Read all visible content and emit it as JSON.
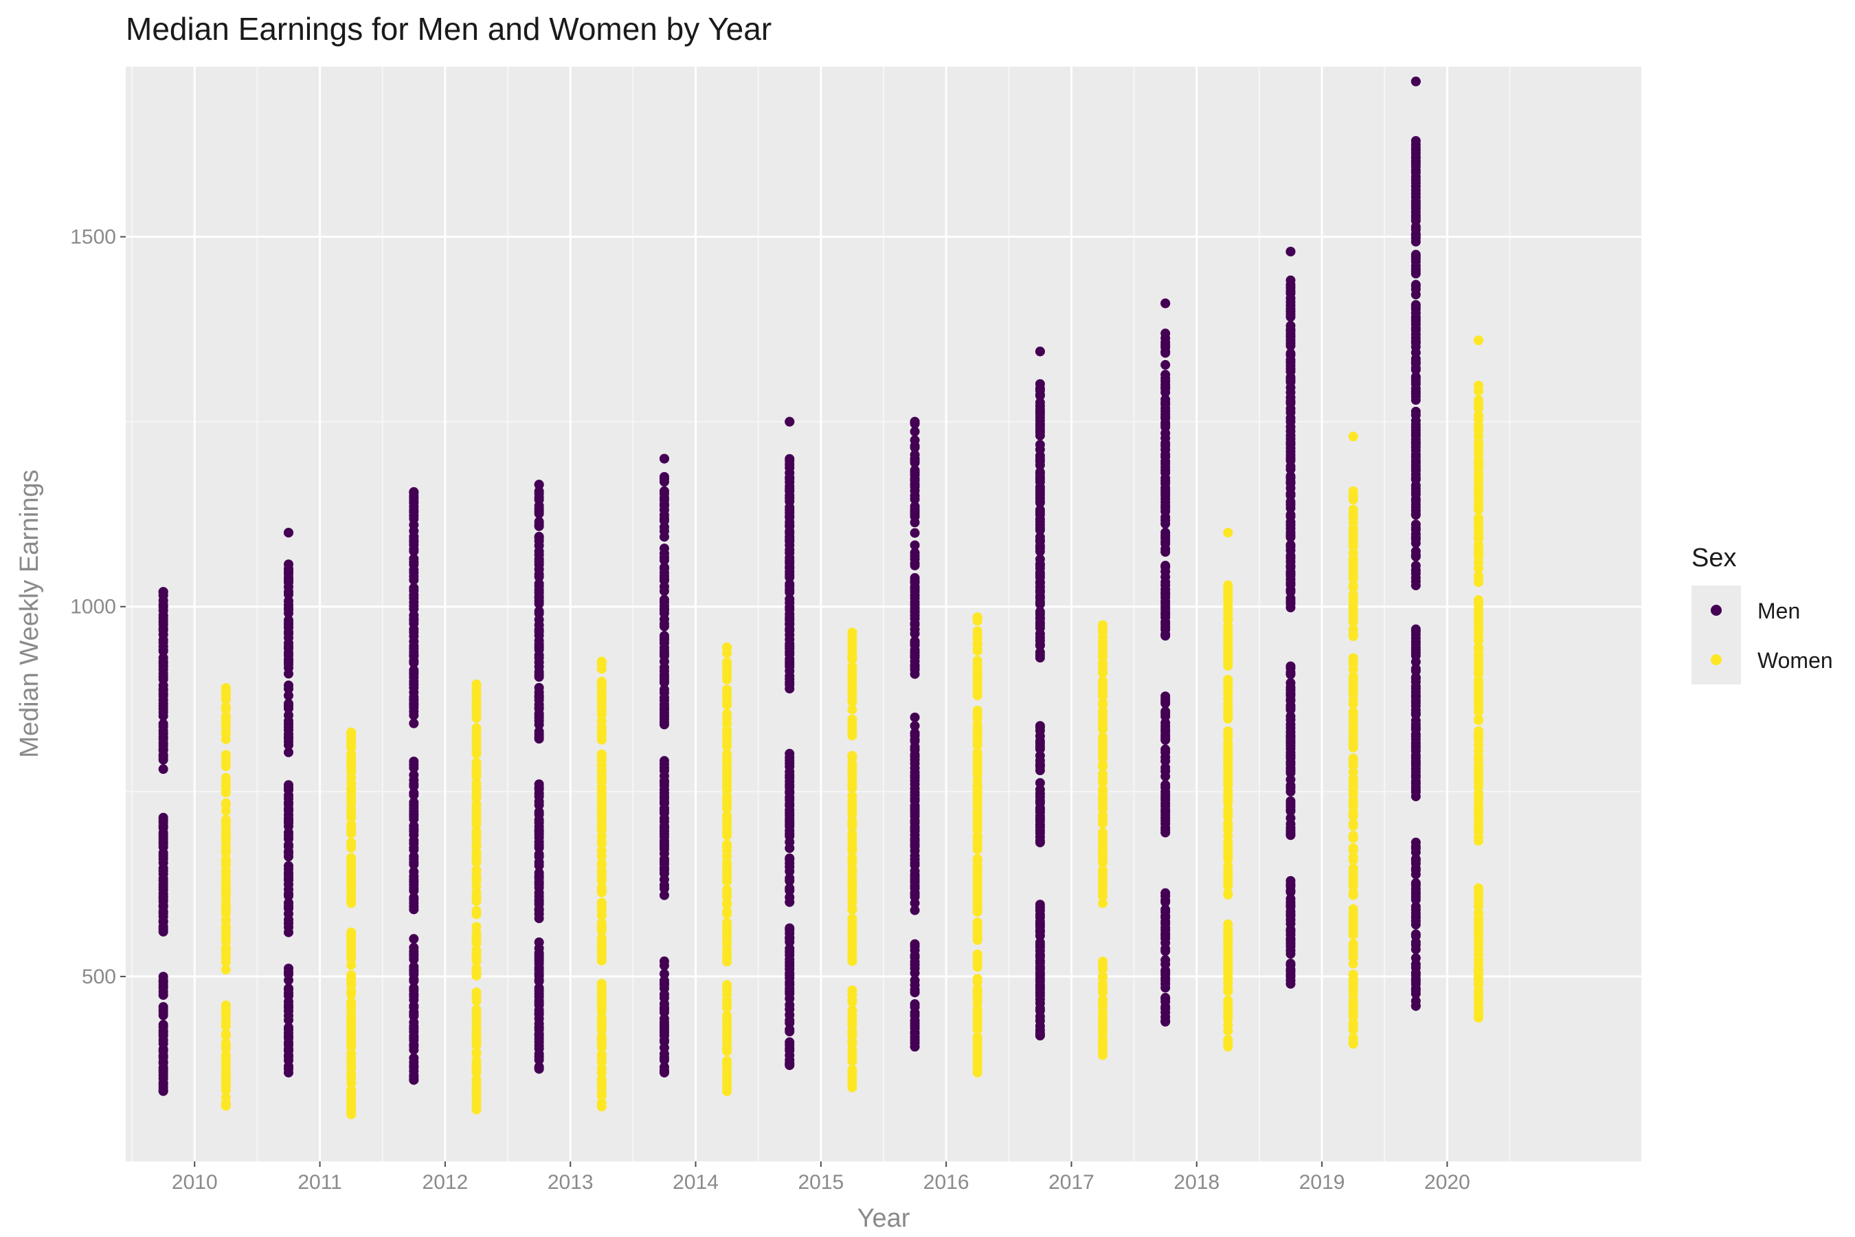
{
  "chart_data": {
    "type": "scatter",
    "title": "Median Earnings for Men and Women by Year",
    "xlabel": "Year",
    "ylabel": "Median Weekly Earnings",
    "x_ticks": [
      "2010",
      "2011",
      "2012",
      "2013",
      "2014",
      "2015",
      "2016",
      "2017",
      "2018",
      "2019",
      "2020"
    ],
    "y_ticks": [
      500,
      1000,
      1500
    ],
    "xlim": [
      2009.45,
      2021.55
    ],
    "ylim": [
      250,
      1730
    ],
    "grid": true,
    "legend": {
      "title": "Sex",
      "position": "right"
    },
    "series": [
      {
        "name": "Men",
        "color": "#440154",
        "groups": [
          {
            "x": 2010,
            "low": 345,
            "high": 1020,
            "clusters": [
              [
                345,
                500
              ],
              [
                560,
                720
              ],
              [
                780,
                1020
              ]
            ],
            "max": 1020
          },
          {
            "x": 2011,
            "low": 370,
            "high": 1100,
            "clusters": [
              [
                370,
                510
              ],
              [
                560,
                760
              ],
              [
                800,
                1060
              ]
            ],
            "max": 1100
          },
          {
            "x": 2012,
            "low": 360,
            "high": 1155,
            "clusters": [
              [
                360,
                550
              ],
              [
                590,
                790
              ],
              [
                830,
                1155
              ]
            ],
            "max": 1155
          },
          {
            "x": 2013,
            "low": 375,
            "high": 1165,
            "clusters": [
              [
                375,
                545
              ],
              [
                580,
                760
              ],
              [
                820,
                1165
              ]
            ],
            "max": 1165
          },
          {
            "x": 2014,
            "low": 370,
            "high": 1200,
            "clusters": [
              [
                370,
                520
              ],
              [
                610,
                790
              ],
              [
                840,
                1180
              ]
            ],
            "max": 1200
          },
          {
            "x": 2015,
            "low": 380,
            "high": 1250,
            "clusters": [
              [
                380,
                570
              ],
              [
                600,
                800
              ],
              [
                890,
                1200
              ]
            ],
            "max": 1250
          },
          {
            "x": 2016,
            "low": 405,
            "high": 1250,
            "clusters": [
              [
                405,
                545
              ],
              [
                590,
                850
              ],
              [
                910,
                1250
              ]
            ],
            "max": 1250
          },
          {
            "x": 2017,
            "low": 420,
            "high": 1345,
            "clusters": [
              [
                420,
                600
              ],
              [
                680,
                840
              ],
              [
                930,
                1300
              ]
            ],
            "max": 1345
          },
          {
            "x": 2018,
            "low": 440,
            "high": 1410,
            "clusters": [
              [
                440,
                620
              ],
              [
                690,
                880
              ],
              [
                960,
                1370
              ]
            ],
            "max": 1410
          },
          {
            "x": 2019,
            "low": 490,
            "high": 1480,
            "clusters": [
              [
                490,
                630
              ],
              [
                690,
                920
              ],
              [
                1000,
                1440
              ]
            ],
            "max": 1480
          },
          {
            "x": 2020,
            "low": 460,
            "high": 1710,
            "clusters": [
              [
                460,
                680
              ],
              [
                740,
                970
              ],
              [
                1030,
                1630
              ]
            ],
            "max": 1710
          }
        ]
      },
      {
        "name": "Women",
        "color": "#fde725",
        "groups": [
          {
            "x": 2010,
            "low": 325,
            "high": 890,
            "clusters": [
              [
                325,
                460
              ],
              [
                500,
                800
              ],
              [
                820,
                890
              ]
            ],
            "max": 890
          },
          {
            "x": 2011,
            "low": 315,
            "high": 830,
            "clusters": [
              [
                315,
                560
              ],
              [
                600,
                800
              ],
              [
                810,
                830
              ]
            ],
            "max": 830
          },
          {
            "x": 2012,
            "low": 320,
            "high": 895,
            "clusters": [
              [
                320,
                480
              ],
              [
                500,
                790
              ],
              [
                800,
                895
              ]
            ],
            "max": 895
          },
          {
            "x": 2013,
            "low": 325,
            "high": 925,
            "clusters": [
              [
                325,
                490
              ],
              [
                520,
                800
              ],
              [
                820,
                925
              ]
            ],
            "max": 925
          },
          {
            "x": 2014,
            "low": 345,
            "high": 945,
            "clusters": [
              [
                345,
                490
              ],
              [
                520,
                800
              ],
              [
                810,
                945
              ]
            ],
            "max": 945
          },
          {
            "x": 2015,
            "low": 350,
            "high": 965,
            "clusters": [
              [
                350,
                480
              ],
              [
                520,
                800
              ],
              [
                820,
                965
              ]
            ],
            "max": 965
          },
          {
            "x": 2016,
            "low": 370,
            "high": 985,
            "clusters": [
              [
                370,
                530
              ],
              [
                550,
                860
              ],
              [
                880,
                985
              ]
            ],
            "max": 985
          },
          {
            "x": 2017,
            "low": 395,
            "high": 975,
            "clusters": [
              [
                395,
                530
              ],
              [
                600,
                900
              ],
              [
                910,
                975
              ]
            ],
            "max": 975
          },
          {
            "x": 2018,
            "low": 405,
            "high": 1100,
            "clusters": [
              [
                405,
                570
              ],
              [
                610,
                900
              ],
              [
                920,
                1030
              ]
            ],
            "max": 1100
          },
          {
            "x": 2019,
            "low": 410,
            "high": 1230,
            "clusters": [
              [
                410,
                590
              ],
              [
                610,
                930
              ],
              [
                960,
                1160
              ]
            ],
            "max": 1230
          },
          {
            "x": 2020,
            "low": 445,
            "high": 1360,
            "clusters": [
              [
                445,
                620
              ],
              [
                680,
                1010
              ],
              [
                1030,
                1300
              ]
            ],
            "max": 1360
          }
        ]
      }
    ]
  }
}
